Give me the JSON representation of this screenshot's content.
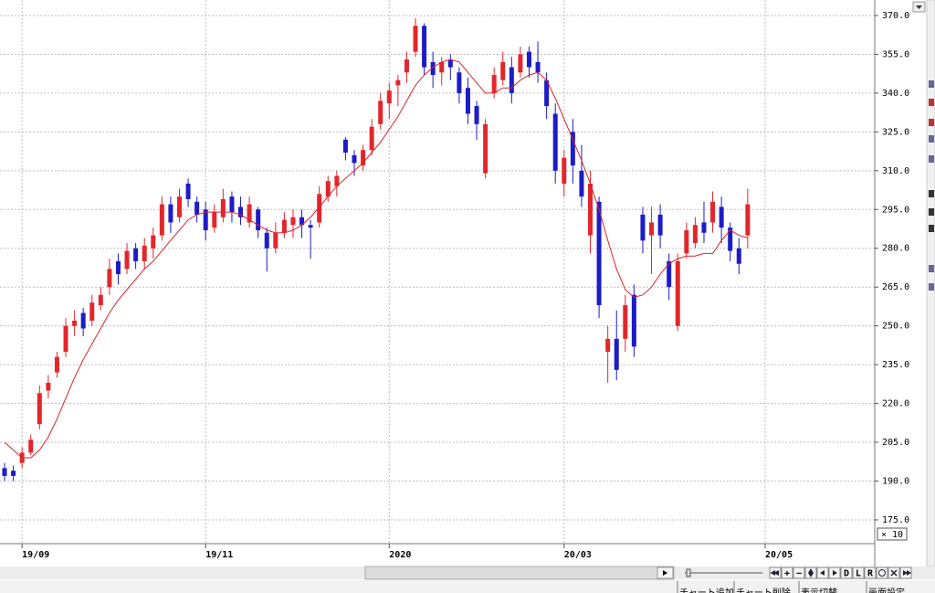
{
  "chart_data": {
    "type": "candlestick",
    "categories": [
      null,
      null,
      "19/09",
      null,
      null,
      null,
      null,
      null,
      null,
      null,
      null,
      null,
      null,
      null,
      null,
      null,
      null,
      null,
      null,
      null,
      null,
      null,
      null,
      "19/11",
      null,
      null,
      null,
      null,
      null,
      null,
      null,
      null,
      null,
      null,
      null,
      null,
      null,
      null,
      null,
      null,
      null,
      null,
      null,
      null,
      "2020",
      null,
      null,
      null,
      null,
      null,
      null,
      null,
      null,
      null,
      null,
      null,
      null,
      null,
      null,
      null,
      null,
      null,
      null,
      null,
      "20/03",
      null,
      null,
      null,
      null,
      null,
      null,
      null,
      null,
      null,
      null,
      null,
      null,
      null,
      null,
      null,
      null,
      null,
      null,
      null,
      null,
      null,
      null,
      "20/05"
    ],
    "open": [
      195,
      194,
      197,
      201,
      212,
      225,
      232,
      240,
      250,
      255,
      252,
      258,
      265,
      275,
      272,
      280,
      275,
      280,
      285,
      297,
      292,
      305,
      298,
      295,
      288,
      292,
      300,
      296,
      290,
      295,
      286,
      280,
      286,
      289,
      292,
      289,
      290,
      300,
      304,
      322,
      316,
      312,
      318,
      328,
      336,
      343,
      348,
      356,
      366,
      352,
      348,
      353,
      348,
      342,
      335,
      309,
      340,
      345,
      350,
      348,
      356,
      352,
      345,
      332,
      305,
      325,
      310,
      285,
      298,
      240,
      245,
      245,
      262,
      293,
      285,
      293,
      275,
      250,
      278,
      282,
      290,
      290,
      296,
      288,
      280,
      285,
      null,
      null
    ],
    "high": [
      197,
      196,
      203,
      208,
      227,
      231,
      240,
      253,
      256,
      257,
      262,
      265,
      276,
      278,
      282,
      282,
      284,
      288,
      300,
      300,
      303,
      307,
      300,
      298,
      297,
      303,
      302,
      300,
      300,
      296,
      288,
      290,
      294,
      295,
      295,
      291,
      304,
      308,
      310,
      323,
      318,
      320,
      330,
      340,
      344,
      347,
      356,
      369,
      367,
      356,
      354,
      355,
      350,
      346,
      337,
      330,
      350,
      356,
      354,
      358,
      358,
      360,
      348,
      336,
      318,
      330,
      320,
      310,
      300,
      250,
      256,
      262,
      266,
      296,
      296,
      297,
      278,
      278,
      290,
      292,
      298,
      302,
      300,
      290,
      284,
      303,
      null,
      null
    ],
    "low": [
      190,
      190,
      195,
      200,
      210,
      222,
      230,
      238,
      246,
      246,
      250,
      256,
      262,
      266,
      270,
      272,
      272,
      276,
      283,
      286,
      290,
      296,
      290,
      283,
      286,
      290,
      290,
      289,
      288,
      284,
      271,
      278,
      284,
      284,
      284,
      276,
      288,
      298,
      300,
      314,
      308,
      310,
      316,
      326,
      330,
      335,
      344,
      354,
      347,
      342,
      343,
      345,
      336,
      328,
      322,
      307,
      338,
      343,
      336,
      346,
      346,
      344,
      330,
      305,
      300,
      305,
      296,
      278,
      253,
      228,
      229,
      240,
      238,
      278,
      270,
      280,
      260,
      248,
      276,
      280,
      282,
      286,
      282,
      275,
      270,
      280,
      null,
      null
    ],
    "close": [
      192,
      192,
      201,
      206,
      224,
      228,
      238,
      250,
      252,
      249,
      259,
      262,
      272,
      270,
      279,
      275,
      281,
      285,
      297,
      290,
      300,
      299,
      293,
      287,
      294,
      299,
      294,
      292,
      297,
      287,
      280,
      286,
      291,
      292,
      289,
      288,
      301,
      306,
      308,
      317,
      313,
      318,
      327,
      337,
      341,
      345,
      353,
      366,
      350,
      347,
      352,
      350,
      340,
      332,
      328,
      328,
      347,
      352,
      340,
      355,
      350,
      348,
      335,
      310,
      315,
      312,
      300,
      305,
      258,
      245,
      233,
      258,
      242,
      283,
      290,
      285,
      265,
      275,
      287,
      289,
      286,
      298,
      288,
      279,
      274,
      297,
      null,
      null
    ],
    "up_color": "#e3262b",
    "down_color": "#1c1cc8",
    "moving_average": {
      "color": "#d9232a",
      "values": [
        205,
        202,
        199,
        199,
        202,
        207,
        214,
        222,
        230,
        237,
        243,
        249,
        255,
        260,
        264,
        268,
        272,
        275,
        279,
        283,
        287,
        291,
        293,
        294,
        294,
        294,
        294,
        293,
        291,
        289,
        287,
        286,
        286,
        287,
        289,
        292,
        296,
        300,
        304,
        307,
        310,
        313,
        317,
        321,
        326,
        331,
        337,
        343,
        347,
        350,
        352,
        353,
        352,
        348,
        344,
        340,
        340,
        342,
        342,
        345,
        347,
        348,
        345,
        338,
        330,
        322,
        314,
        305,
        295,
        283,
        272,
        264,
        261,
        262,
        265,
        270,
        274,
        276,
        277,
        277,
        278,
        278,
        283,
        287,
        285,
        284,
        null,
        null
      ]
    },
    "ylim": [
      165.8,
      376
    ],
    "yticks": [
      {
        "value": 175,
        "label": "175.0"
      },
      {
        "value": 190,
        "label": "190.0"
      },
      {
        "value": 205,
        "label": "205.0"
      },
      {
        "value": 220,
        "label": "220.0"
      },
      {
        "value": 235,
        "label": "235.0"
      },
      {
        "value": 250,
        "label": "250.0"
      },
      {
        "value": 265,
        "label": "265.0"
      },
      {
        "value": 280,
        "label": "280.0"
      },
      {
        "value": 295,
        "label": "295.0"
      },
      {
        "value": 310,
        "label": "310.0"
      },
      {
        "value": 325,
        "label": "325.0"
      },
      {
        "value": 340,
        "label": "340.0"
      },
      {
        "value": 355,
        "label": "355.0"
      },
      {
        "value": 370,
        "label": "370.0"
      }
    ],
    "grid": true
  },
  "ui": {
    "zoom_label": "× 10",
    "controls": [
      "+",
      "−",
      "D",
      "L",
      "R"
    ],
    "tabs": [
      "チャート追加",
      "チャート削除",
      "表示切替",
      "画面設定"
    ]
  }
}
